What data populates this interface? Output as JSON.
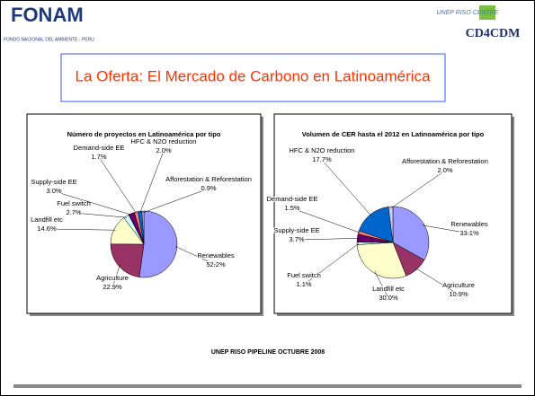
{
  "header": {
    "left_logo": "FONAM",
    "left_logo_subtitle": "FONDO NACIONAL DEL AMBIENTE - PERU",
    "right_logo_top": "UNEP RISO CENTRE",
    "right_logo": "CD4CDM"
  },
  "slide_title": "La Oferta: El Mercado de Carbono en Latinoamérica",
  "chart_data": [
    {
      "type": "pie",
      "title": "Número de proyectos en Latinoamérica por tipo",
      "categories": [
        "Renewables",
        "Agriculture",
        "Landfill etc",
        "Fuel switch",
        "Supply-side EE",
        "Demand-side EE",
        "HFC & N2O reduction",
        "Afforestation & Reforestation"
      ],
      "values": [
        52.2,
        22.9,
        14.6,
        2.7,
        3.0,
        1.7,
        2.0,
        0.9
      ],
      "value_labels": [
        "52.2%",
        "22.9%",
        "14.6%",
        "2.7%",
        "3.0%",
        "1.7%",
        "2.0%",
        "0.9%"
      ],
      "colors": [
        "#9999ff",
        "#993366",
        "#ffffcc",
        "#ccffff",
        "#660066",
        "#ff8080",
        "#0066cc",
        "#ccccff"
      ]
    },
    {
      "type": "pie",
      "title": "Volumen de CER hasta el 2012 en Latinoamérica por tipo",
      "categories": [
        "Renewables",
        "Agriculture",
        "Landfill etc",
        "Fuel switch",
        "Supply-side EE",
        "Demand-side EE",
        "HFC & N2O reduction",
        "Afforestation & Reforestation"
      ],
      "values": [
        33.1,
        10.9,
        30.0,
        1.1,
        3.7,
        1.5,
        17.7,
        2.0
      ],
      "value_labels": [
        "33.1%",
        "10.9%",
        "30.0%",
        "1.1%",
        "3.7%",
        "1.5%",
        "17.7%",
        "2.0%"
      ],
      "colors": [
        "#9999ff",
        "#993366",
        "#ffffcc",
        "#ccffff",
        "#660066",
        "#ff8080",
        "#0066cc",
        "#ccccff"
      ]
    }
  ],
  "footer": "UNEP RISO PIPELINE OCTUBRE 2008"
}
